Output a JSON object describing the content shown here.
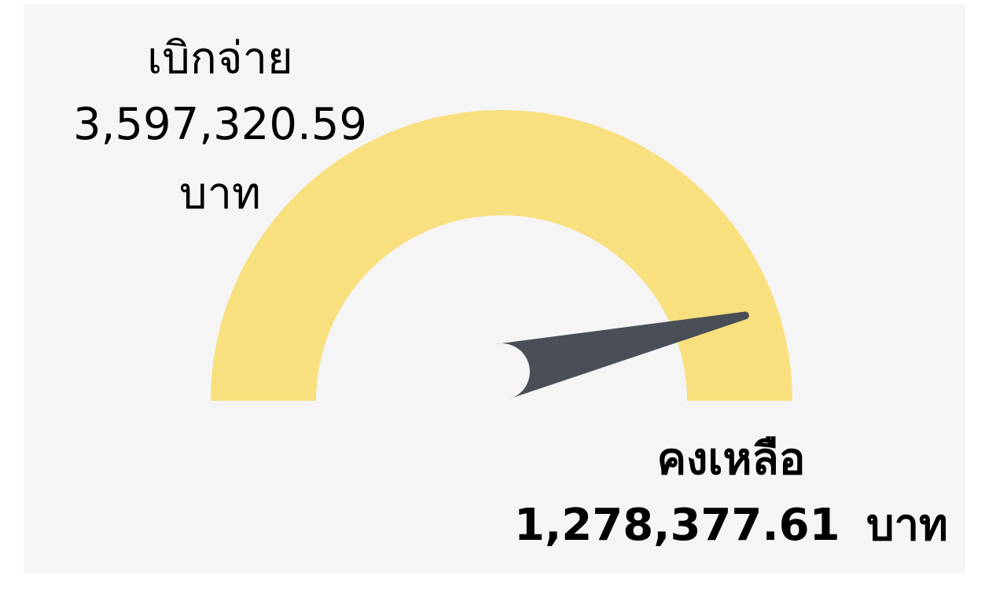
{
  "chart_data": {
    "type": "gauge",
    "labels": [
      "เบิกจ่าย",
      "คงเหลือ"
    ],
    "values": [
      3597320.59,
      1278377.61
    ],
    "value_labels": [
      "3,597,320.59",
      "1,278,377.61"
    ],
    "unit": "บาท",
    "ylim": [
      0,
      3877000
    ],
    "color": "#f9e07f",
    "needle_color": "#4a4f57",
    "background": "#f5f5f5"
  }
}
